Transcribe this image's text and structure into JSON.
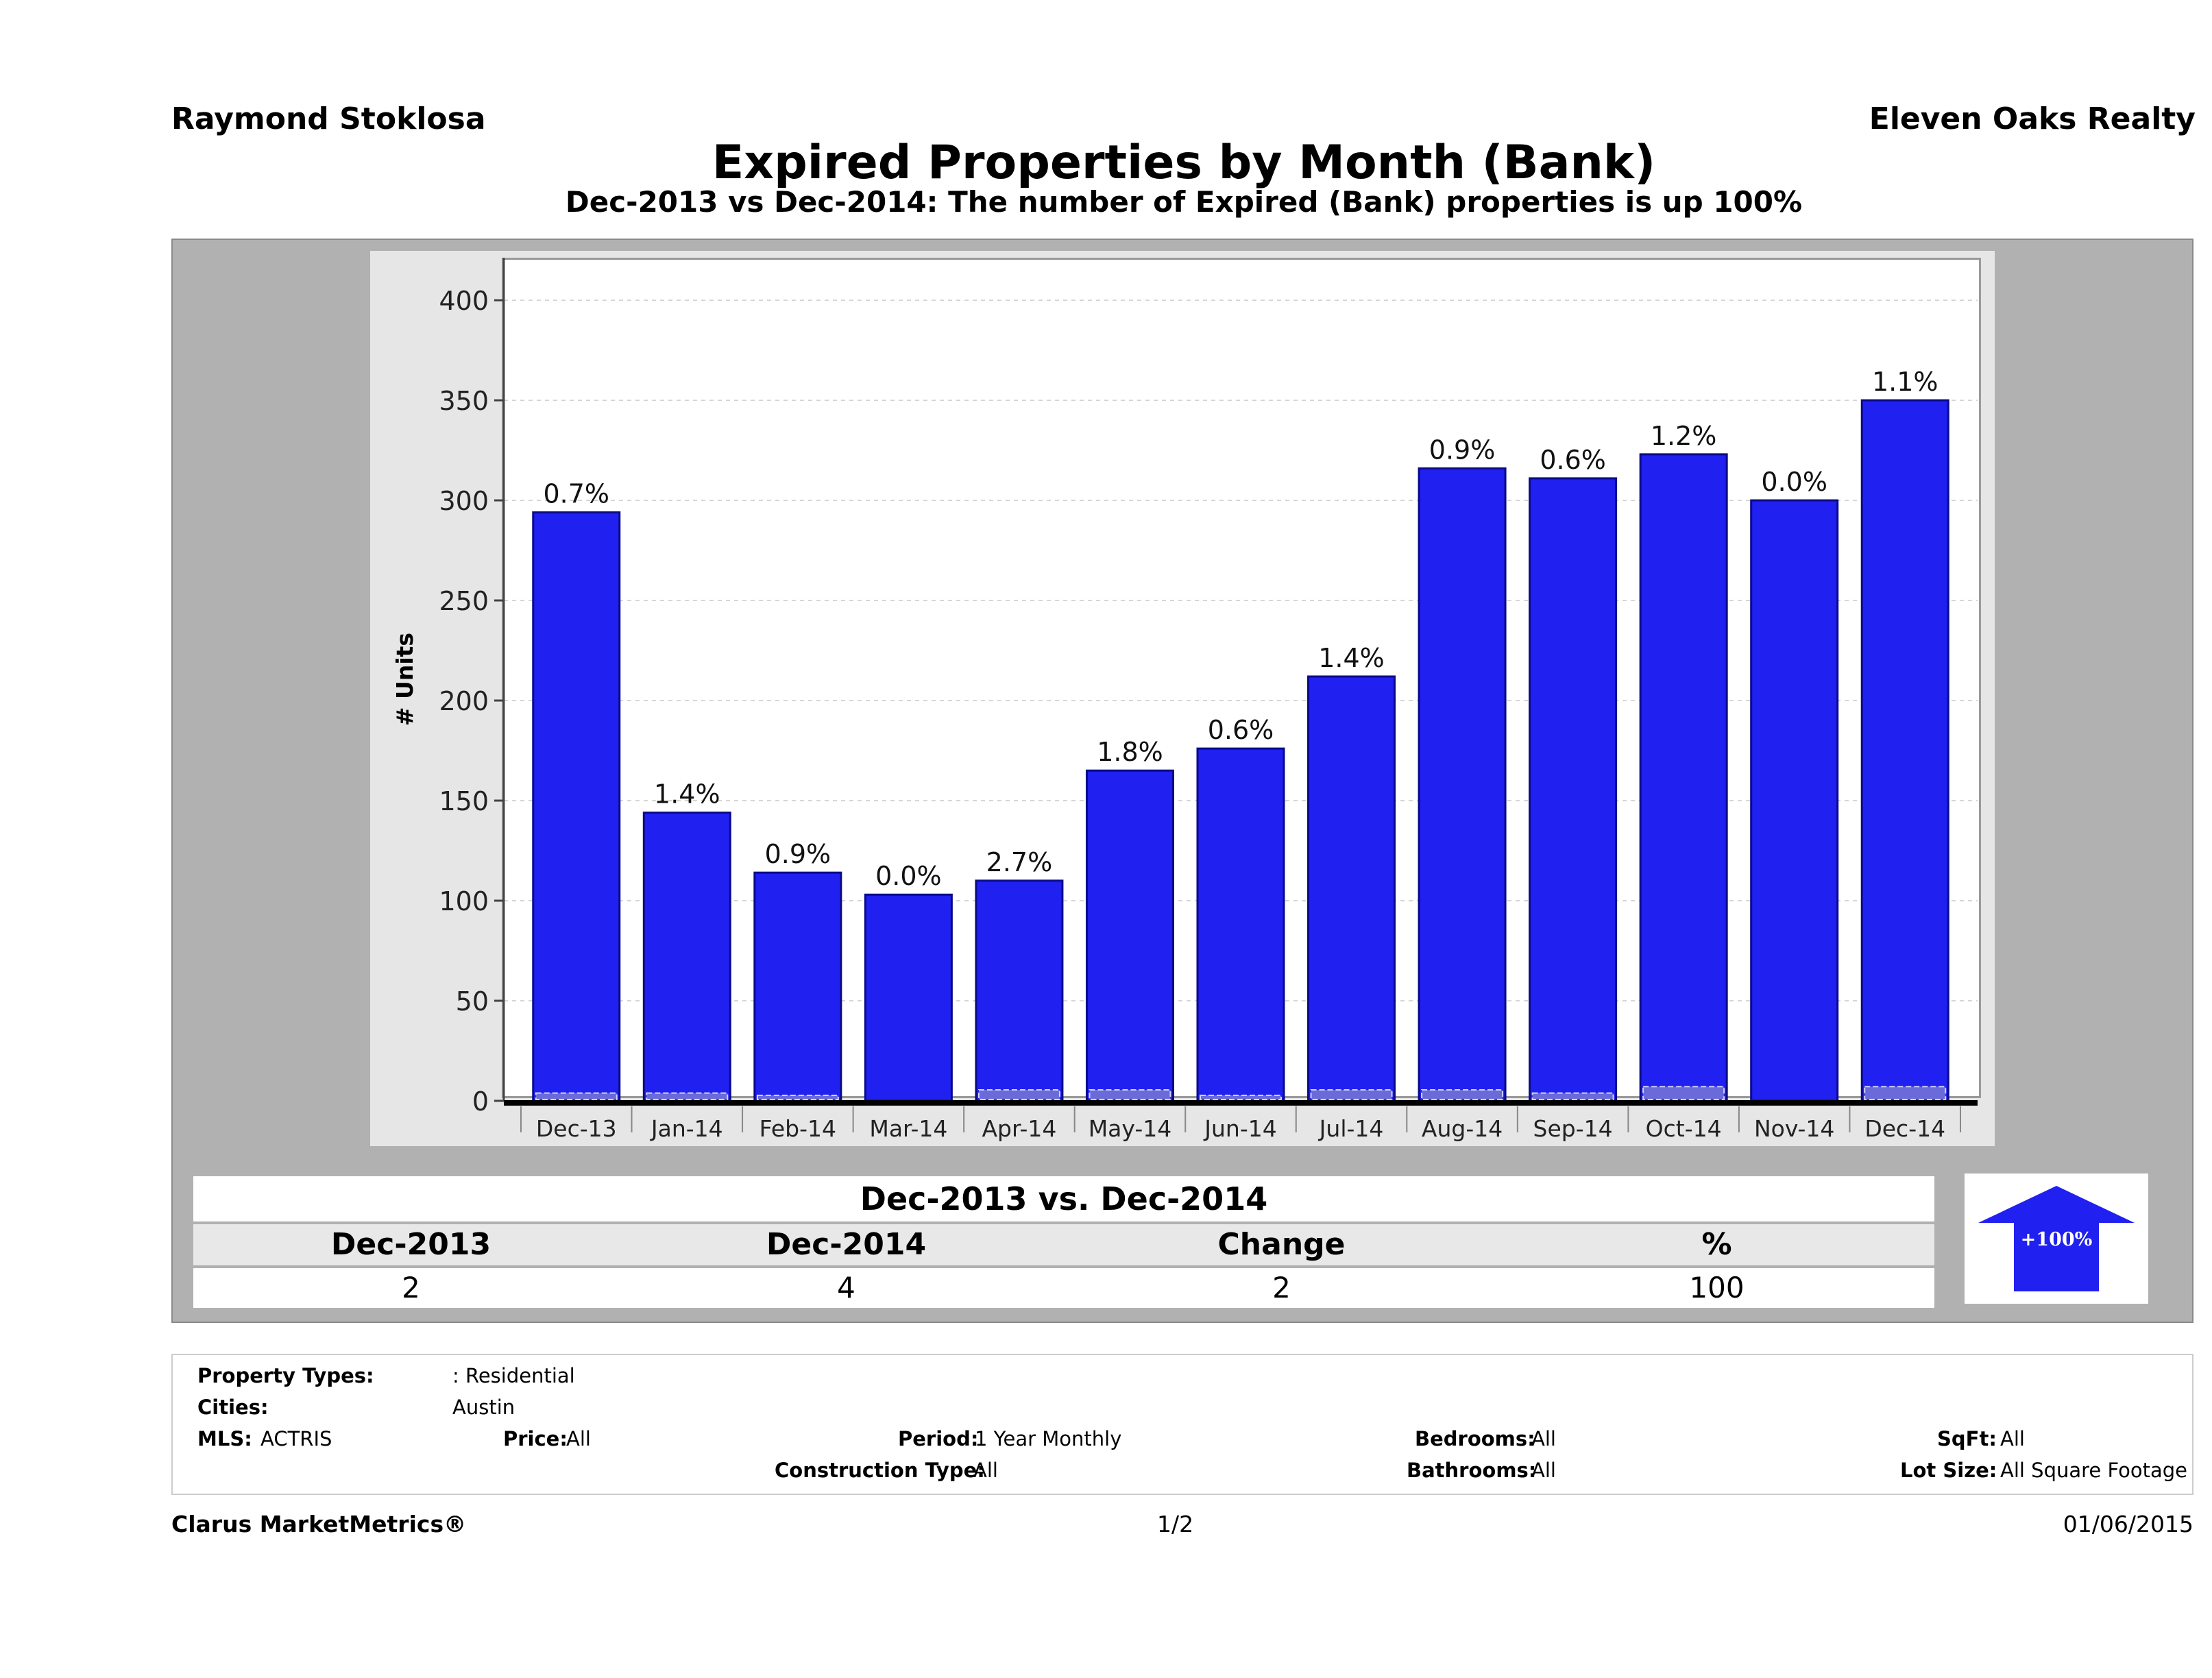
{
  "header": {
    "agent": "Raymond Stoklosa",
    "company": "Eleven Oaks Realty",
    "title": "Expired Properties by Month (Bank)",
    "subtitle": "Dec-2013 vs Dec-2014: The number of Expired (Bank)  properties is up 100%"
  },
  "chart_data": {
    "type": "bar",
    "title": "Expired Properties by Month (Bank)",
    "subtitle": "Dec-2013 vs Dec-2014: The number of Expired (Bank)  properties is up 100%",
    "xlabel": "",
    "ylabel": "# Units",
    "ylim": [
      0,
      420
    ],
    "yticks": [
      0,
      50,
      100,
      150,
      200,
      250,
      300,
      350,
      400
    ],
    "grid": true,
    "bar_color": "#2020f0",
    "categories": [
      "Dec-13",
      "Jan-14",
      "Feb-14",
      "Mar-14",
      "Apr-14",
      "May-14",
      "Jun-14",
      "Jul-14",
      "Aug-14",
      "Sep-14",
      "Oct-14",
      "Nov-14",
      "Dec-14"
    ],
    "values": [
      294,
      144,
      114,
      103,
      110,
      165,
      176,
      212,
      316,
      311,
      323,
      300,
      350
    ],
    "bank_units": [
      2,
      2,
      1,
      0,
      3,
      3,
      1,
      3,
      3,
      2,
      4,
      0,
      4
    ],
    "data_labels": [
      "0.7%",
      "1.4%",
      "0.9%",
      "0.0%",
      "2.7%",
      "1.8%",
      "0.6%",
      "1.4%",
      "0.9%",
      "0.6%",
      "1.2%",
      "0.0%",
      "1.1%"
    ]
  },
  "comparison": {
    "title": "Dec-2013 vs. Dec-2014",
    "headers": [
      "Dec-2013",
      "Dec-2014",
      "Change",
      "%"
    ],
    "values": [
      "2",
      "4",
      "2",
      "100"
    ],
    "badge": "+100%",
    "badge_color": "#2020f0"
  },
  "filters": {
    "property_types_label": "Property Types:",
    "property_types": ": Residential",
    "cities_label": "Cities:",
    "cities": "Austin",
    "mls_label": "MLS:",
    "mls": "ACTRIS",
    "price_label": "Price:",
    "price": "All",
    "period_label": "Period:",
    "period": "1 Year Monthly",
    "construction_label": "Construction Type:",
    "construction": "All",
    "bedrooms_label": "Bedrooms:",
    "bedrooms": "All",
    "bathrooms_label": "Bathrooms:",
    "bathrooms": "All",
    "sqft_label": "SqFt:",
    "sqft": "All",
    "lot_label": "Lot Size:",
    "lot": "All Square Footage"
  },
  "footer": {
    "brand": "Clarus MarketMetrics®",
    "page": "1/2",
    "date": "01/06/2015"
  }
}
